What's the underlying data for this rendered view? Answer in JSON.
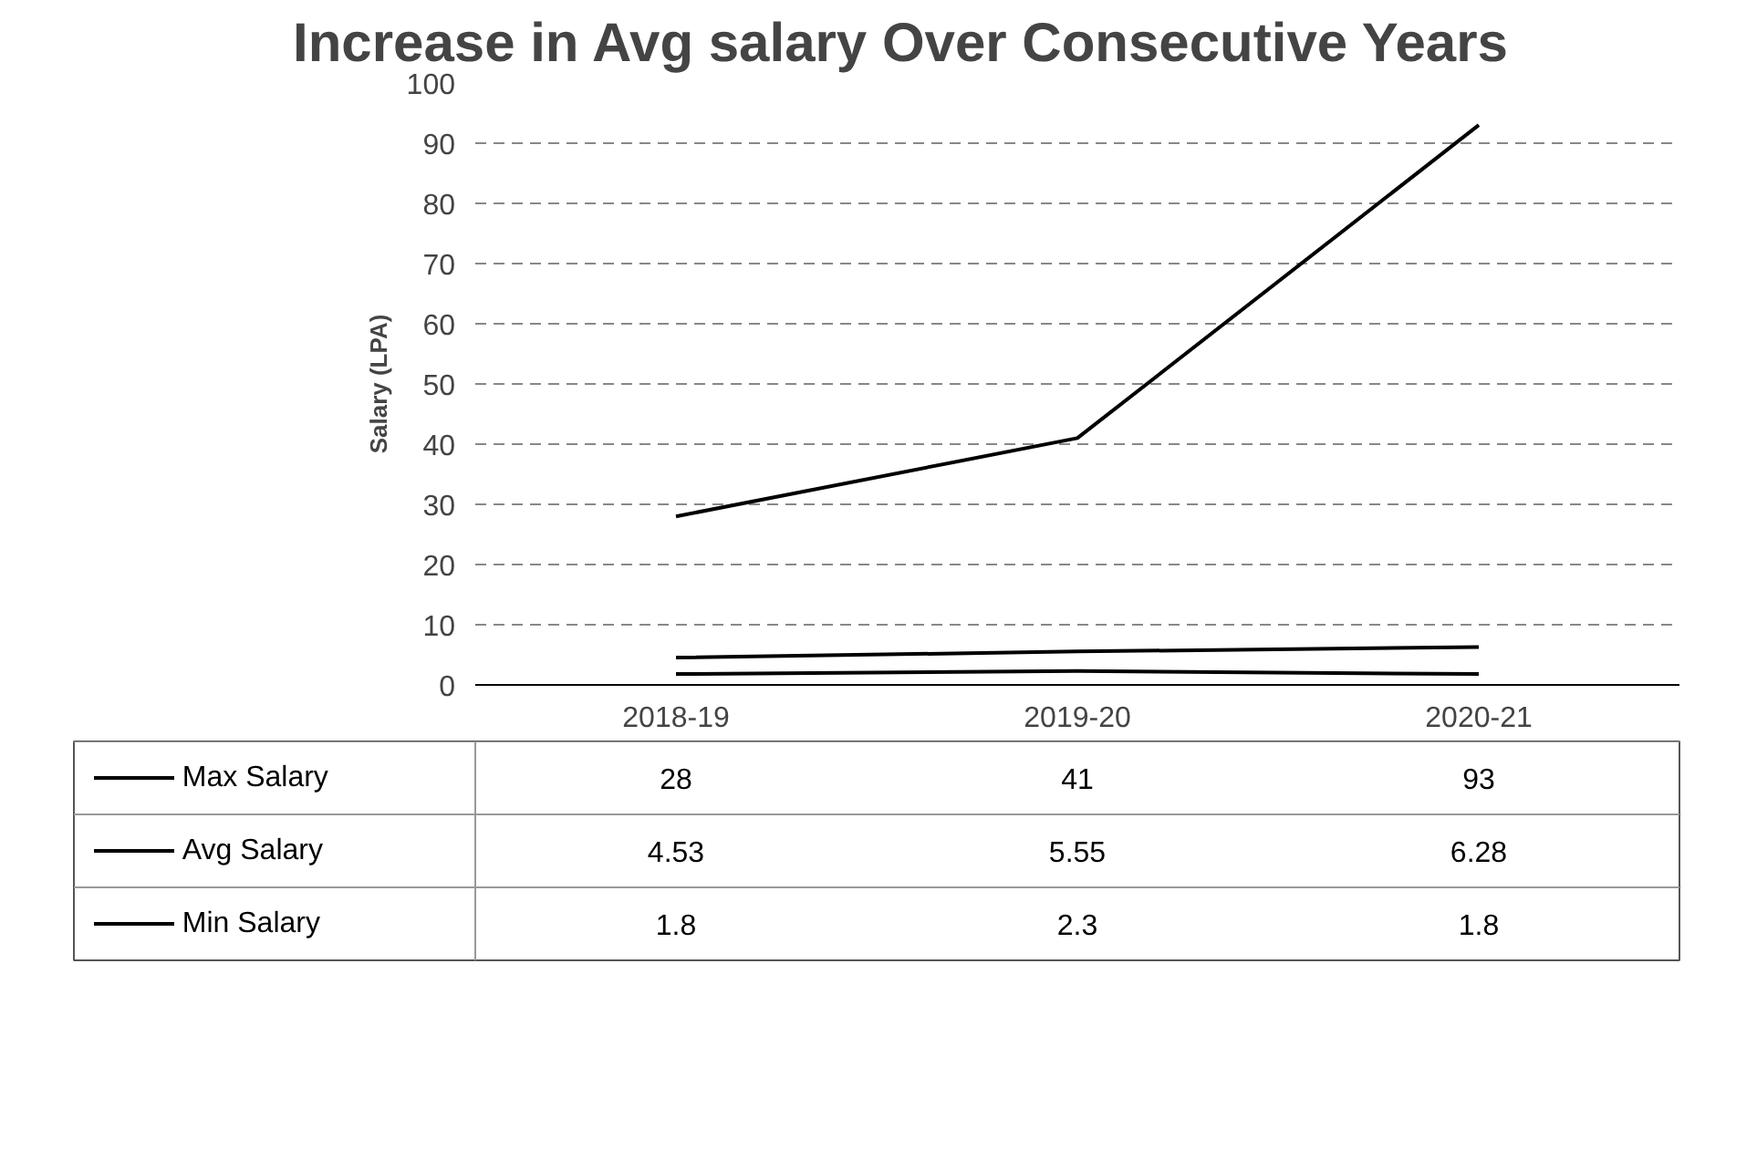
{
  "chart_data": {
    "type": "line",
    "title": "Increase in Avg salary Over Consecutive Years",
    "ylabel": "Salary (LPA)",
    "categories": [
      "2018-19",
      "2019-20",
      "2020-21"
    ],
    "series": [
      {
        "name": "Max Salary",
        "color": "#000000",
        "values": [
          28,
          41,
          93
        ]
      },
      {
        "name": "Avg Salary",
        "color": "#000000",
        "values": [
          4.53,
          5.55,
          6.28
        ]
      },
      {
        "name": "Min Salary",
        "color": "#000000",
        "values": [
          1.8,
          2.3,
          1.8
        ]
      }
    ],
    "ylim": [
      0,
      100
    ],
    "yticks": [
      0,
      10,
      20,
      30,
      40,
      50,
      60,
      70,
      80,
      90,
      100
    ],
    "grid": "y",
    "legend": "bottom",
    "data_labels": true,
    "marker": "none",
    "line_style": "solid"
  }
}
